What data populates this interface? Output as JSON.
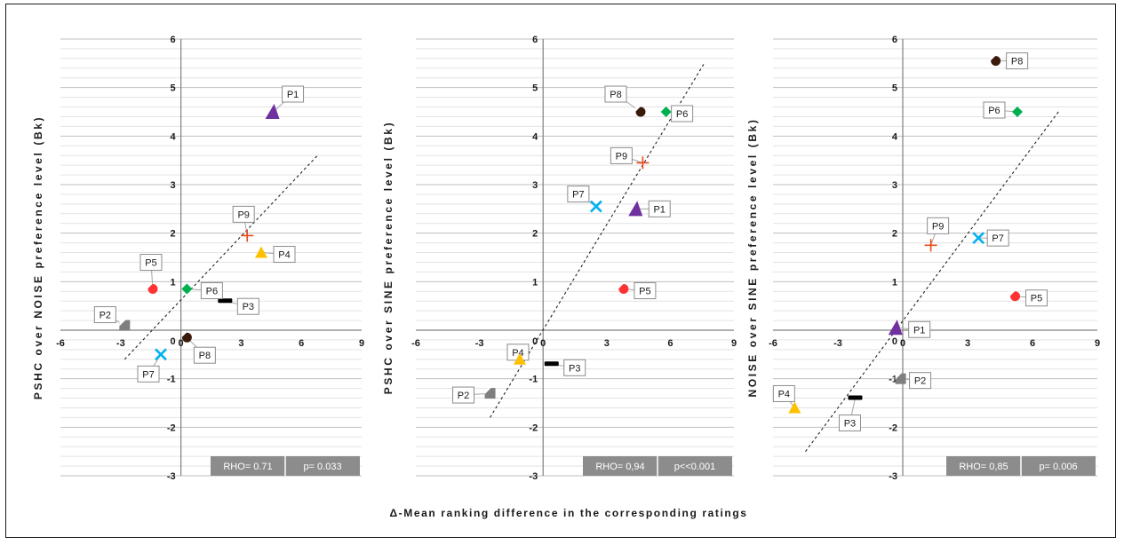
{
  "figure": {
    "shared_xlabel": "Δ-Mean ranking difference in the corresponding ratings"
  },
  "colors": {
    "P1": "#7030a0",
    "P2": "#7f7f7f",
    "P3": "#000000",
    "P4": "#ffc000",
    "P5": "#ff3333",
    "P6": "#00b050",
    "P7": "#00b0f0",
    "P8": "#3a1a0a",
    "P9": "#e84a1a"
  },
  "markers": {
    "P1": "triangle-left",
    "P2": "square-notched",
    "P3": "dash",
    "P4": "triangle",
    "P5": "circle-notched",
    "P6": "diamond",
    "P7": "x",
    "P8": "circle-notched",
    "P9": "plus"
  },
  "chart_data": [
    {
      "type": "scatter",
      "title": "",
      "ylabel": "PSHC over NOISE preference level (Bk)",
      "xlim": [
        -6,
        9
      ],
      "ylim": [
        -3,
        6
      ],
      "xticks": [
        -6,
        -3,
        0,
        3,
        6,
        9
      ],
      "yticks": [
        -3,
        -2,
        -1,
        0,
        1,
        2,
        3,
        4,
        5,
        6
      ],
      "grid": true,
      "trendline": [
        [
          -2.8,
          -0.6
        ],
        [
          6.8,
          3.6
        ]
      ],
      "stats": {
        "rho": "RHO= 0.71",
        "p": "p= 0.033"
      },
      "points": [
        {
          "label": "P1",
          "x": 4.6,
          "y": 4.5
        },
        {
          "label": "P2",
          "x": -2.8,
          "y": 0.1
        },
        {
          "label": "P3",
          "x": 2.2,
          "y": 0.6
        },
        {
          "label": "P4",
          "x": 4.0,
          "y": 1.6
        },
        {
          "label": "P5",
          "x": -1.4,
          "y": 0.85
        },
        {
          "label": "P6",
          "x": 0.3,
          "y": 0.85
        },
        {
          "label": "P7",
          "x": -1.0,
          "y": -0.5
        },
        {
          "label": "P8",
          "x": 0.3,
          "y": -0.15
        },
        {
          "label": "P9",
          "x": 3.3,
          "y": 1.95
        }
      ]
    },
    {
      "type": "scatter",
      "title": "",
      "ylabel": "PSHC over SINE preference level (Bk)",
      "xlim": [
        -6,
        9
      ],
      "ylim": [
        -3,
        6
      ],
      "xticks": [
        -6,
        -3,
        0,
        3,
        6,
        9
      ],
      "yticks": [
        -3,
        -2,
        -1,
        0,
        1,
        2,
        3,
        4,
        5,
        6
      ],
      "grid": true,
      "trendline": [
        [
          -2.5,
          -1.8
        ],
        [
          7.6,
          5.5
        ]
      ],
      "stats": {
        "rho": "RHO= 0,94",
        "p": "p<<0.001"
      },
      "points": [
        {
          "label": "P1",
          "x": 4.4,
          "y": 2.5
        },
        {
          "label": "P2",
          "x": -2.5,
          "y": -1.3
        },
        {
          "label": "P3",
          "x": 0.4,
          "y": -0.7
        },
        {
          "label": "P4",
          "x": -1.1,
          "y": -0.6
        },
        {
          "label": "P5",
          "x": 3.8,
          "y": 0.85
        },
        {
          "label": "P6",
          "x": 5.8,
          "y": 4.5
        },
        {
          "label": "P7",
          "x": 2.5,
          "y": 2.55
        },
        {
          "label": "P8",
          "x": 4.6,
          "y": 4.5
        },
        {
          "label": "P9",
          "x": 4.7,
          "y": 3.45
        }
      ]
    },
    {
      "type": "scatter",
      "title": "",
      "ylabel": "NOISE over SINE preference level (Bk)",
      "xlim": [
        -6,
        9
      ],
      "ylim": [
        -3,
        6
      ],
      "xticks": [
        -6,
        -3,
        0,
        3,
        6,
        9
      ],
      "yticks": [
        -3,
        -2,
        -1,
        0,
        1,
        2,
        3,
        4,
        5,
        6
      ],
      "grid": true,
      "trendline": [
        [
          -4.5,
          -2.5
        ],
        [
          7.2,
          4.5
        ]
      ],
      "stats": {
        "rho": "RHO= 0,85",
        "p": "p= 0.006"
      },
      "points": [
        {
          "label": "P1",
          "x": -0.3,
          "y": 0.05
        },
        {
          "label": "P2",
          "x": -0.1,
          "y": -1.0
        },
        {
          "label": "P3",
          "x": -2.2,
          "y": -1.4
        },
        {
          "label": "P4",
          "x": -5.0,
          "y": -1.6
        },
        {
          "label": "P5",
          "x": 5.2,
          "y": 0.7
        },
        {
          "label": "P6",
          "x": 5.3,
          "y": 4.5
        },
        {
          "label": "P7",
          "x": 3.5,
          "y": 1.9
        },
        {
          "label": "P8",
          "x": 4.3,
          "y": 5.55
        },
        {
          "label": "P9",
          "x": 1.3,
          "y": 1.75
        }
      ]
    }
  ]
}
